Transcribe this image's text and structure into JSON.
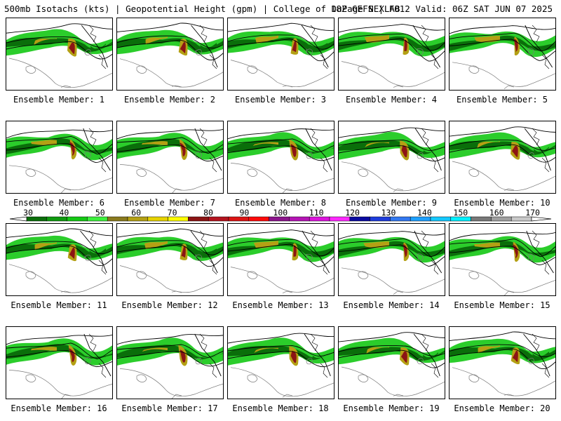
{
  "header": {
    "title_left": "500mb Isotachs (kts) | Geopotential Height (gpm) | College of DuPage NEXLAB",
    "title_right": "18Z GEFS | F012 Valid: 06Z SAT JUN 07 2025"
  },
  "members": [
    {
      "label": "Ensemble Member: 1"
    },
    {
      "label": "Ensemble Member: 2"
    },
    {
      "label": "Ensemble Member: 3"
    },
    {
      "label": "Ensemble Member: 4"
    },
    {
      "label": "Ensemble Member: 5"
    },
    {
      "label": "Ensemble Member: 6"
    },
    {
      "label": "Ensemble Member: 7"
    },
    {
      "label": "Ensemble Member: 8"
    },
    {
      "label": "Ensemble Member: 9"
    },
    {
      "label": "Ensemble Member: 10"
    },
    {
      "label": "Ensemble Member: 11"
    },
    {
      "label": "Ensemble Member: 12"
    },
    {
      "label": "Ensemble Member: 13"
    },
    {
      "label": "Ensemble Member: 14"
    },
    {
      "label": "Ensemble Member: 15"
    },
    {
      "label": "Ensemble Member: 16"
    },
    {
      "label": "Ensemble Member: 17"
    },
    {
      "label": "Ensemble Member: 18"
    },
    {
      "label": "Ensemble Member: 19"
    },
    {
      "label": "Ensemble Member: 20"
    }
  ],
  "legend": {
    "ticks": [
      "30",
      "40",
      "50",
      "60",
      "70",
      "80",
      "90",
      "100",
      "110",
      "120",
      "130",
      "140",
      "150",
      "160",
      "170"
    ],
    "colors": [
      "#0a6e0a",
      "#0f9a0f",
      "#14c814",
      "#3cf03c",
      "#8a7a1e",
      "#b4a014",
      "#e6d200",
      "#ffff00",
      "#8c1414",
      "#b4141e",
      "#dc1414",
      "#ff0a0a",
      "#8c148c",
      "#b414b4",
      "#dc14dc",
      "#ff28ff",
      "#0a0aa0",
      "#1e3cdc",
      "#3278f0",
      "#1ea0ff",
      "#14c8ff",
      "#00f0ff",
      "#787878",
      "#a0a0a0",
      "#c8c8c8"
    ]
  }
}
